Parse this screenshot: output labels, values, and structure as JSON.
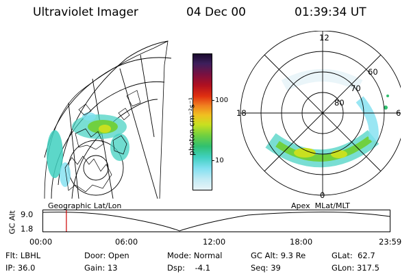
{
  "header": {
    "title": "Ultraviolet Imager",
    "date": "04 Dec 00",
    "time": "01:39:34 UT"
  },
  "colorbar": {
    "units": "photon cm⁻²s⁻¹",
    "ticks": [
      "100",
      "10"
    ],
    "scale": "log",
    "colors": [
      "#1a0a2e",
      "#3d1f5c",
      "#7a1040",
      "#b01020",
      "#e03010",
      "#f08020",
      "#f0c020",
      "#c8e020",
      "#70d040",
      "#30c070",
      "#40d0c0",
      "#80e0f0",
      "#c0eaf4",
      "#e8f4f8"
    ]
  },
  "geo_panel": {
    "label": "Geographic Lat/Lon"
  },
  "apex_panel": {
    "label": "Apex  MLat/MLT",
    "lat_labels": [
      "80",
      "70",
      "60"
    ],
    "mlt_labels": [
      "12",
      "18",
      "6",
      "0"
    ]
  },
  "altitude_plot": {
    "ylabel": "GC Alt",
    "yticks": [
      "9.0",
      "1.8"
    ],
    "xticks": [
      "00:00",
      "06:00",
      "12:00",
      "18:00",
      "23:59"
    ],
    "marker_time": "01:39",
    "marker_color": "#cc0000"
  },
  "info": {
    "flt": "Flt: LBHL",
    "ip": "IP: 36.0",
    "door": "Door: Open",
    "gain": "Gain: 13",
    "mode": "Mode: Normal",
    "dsp": "Dsp:    -4.1",
    "gcalt": "GC Alt: 9.3 Re",
    "seq": "Seq: 39",
    "glat": "GLat:  62.7",
    "glon": "GLon: 317.5"
  }
}
